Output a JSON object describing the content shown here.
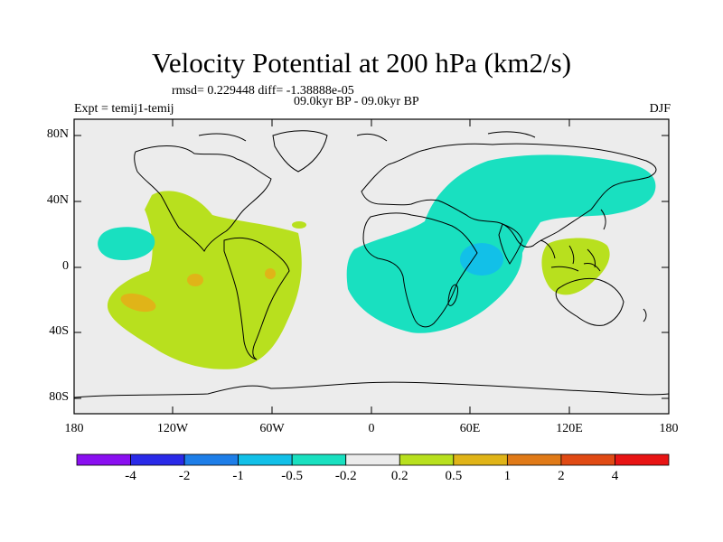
{
  "header": {
    "title": "Velocity Potential at 200 hPa (km2/s)",
    "stats": "rmsd= 0.229448 diff= -1.38888e-05",
    "period": "09.0kyr BP - 09.0kyr BP",
    "experiment": "Expt = temij1-temij",
    "season": "DJF"
  },
  "axes": {
    "lat_labels": [
      "80N",
      "40N",
      "0",
      "40S",
      "80S"
    ],
    "lon_labels": [
      "180",
      "120W",
      "60W",
      "0",
      "60E",
      "120E",
      "180"
    ]
  },
  "colorbar": {
    "labels": [
      "-4",
      "-2",
      "-1",
      "-0.5",
      "-0.2",
      "0.2",
      "0.5",
      "1",
      "2",
      "4"
    ],
    "colors": [
      "#8a0ff0",
      "#2a2ae8",
      "#1e7ee8",
      "#12c0e8",
      "#19e0c0",
      "#ececec",
      "#b8e01e",
      "#e0b418",
      "#e07a18",
      "#e04a14",
      "#e81414"
    ]
  },
  "colors": {
    "ocean": "#ececec",
    "neg_weak": "#19e0c0",
    "neg_mid": "#12c0e8",
    "pos_weak": "#b8e01e",
    "pos_mid": "#e0b418",
    "pos_strong": "#e07a18"
  }
}
